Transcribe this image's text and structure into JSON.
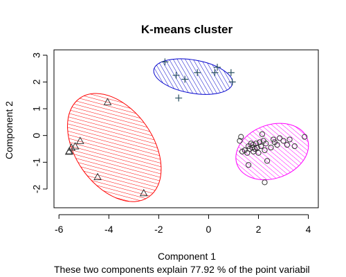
{
  "chart_data": {
    "type": "scatter",
    "title": "K-means cluster",
    "xlabel": "Component 1",
    "ylabel": "Component 2",
    "footnote": "These two components explain 77.92 % of the point variabil",
    "xlim": [
      -6.2,
      4.4
    ],
    "ylim": [
      -2.7,
      3.2
    ],
    "xticks": [
      -6,
      -4,
      -2,
      0,
      2,
      4
    ],
    "yticks": [
      -2,
      -1,
      0,
      1,
      2,
      3
    ],
    "grid": false,
    "colors": {
      "cluster1": "#ff0000",
      "cluster2": "#0000cc",
      "cluster3": "#ff00ff",
      "points": "#333333"
    },
    "clusters": [
      {
        "marker": "triangle",
        "color": "#ff0000",
        "ellipse": {
          "cx": -3.78,
          "cy": -0.45,
          "rx": 1.55,
          "ry": 2.25,
          "angle": 35
        },
        "points": [
          [
            -4.05,
            1.25
          ],
          [
            -5.6,
            -0.6
          ],
          [
            -5.5,
            -0.45
          ],
          [
            -5.35,
            -0.4
          ],
          [
            -5.15,
            -0.2
          ],
          [
            -4.45,
            -1.55
          ],
          [
            -2.6,
            -2.15
          ],
          [
            -5.58,
            -0.58
          ]
        ]
      },
      {
        "marker": "plus",
        "color": "#0000cc",
        "ellipse": {
          "cx": -0.62,
          "cy": 2.2,
          "rx": 1.6,
          "ry": 0.62,
          "angle": -10
        },
        "points": [
          [
            -1.75,
            2.75
          ],
          [
            -1.3,
            2.25
          ],
          [
            -1.2,
            1.4
          ],
          [
            -0.95,
            2.1
          ],
          [
            -0.45,
            2.35
          ],
          [
            0.25,
            2.35
          ],
          [
            0.35,
            2.55
          ],
          [
            0.9,
            2.35
          ],
          [
            0.95,
            2.0
          ]
        ]
      },
      {
        "marker": "circle",
        "color": "#ff00ff",
        "ellipse": {
          "cx": 2.55,
          "cy": -0.6,
          "rx": 1.5,
          "ry": 1.0,
          "angle": 20
        },
        "points": [
          [
            1.25,
            -0.2
          ],
          [
            1.3,
            -0.05
          ],
          [
            1.35,
            -0.6
          ],
          [
            1.45,
            -0.55
          ],
          [
            1.55,
            -0.65
          ],
          [
            1.6,
            -0.4
          ],
          [
            1.65,
            -0.5
          ],
          [
            1.7,
            -0.3
          ],
          [
            1.75,
            -0.45
          ],
          [
            1.78,
            -0.35
          ],
          [
            1.8,
            -0.6
          ],
          [
            1.85,
            -0.5
          ],
          [
            1.9,
            -0.3
          ],
          [
            1.95,
            -0.45
          ],
          [
            2.0,
            -0.65
          ],
          [
            2.05,
            -0.25
          ],
          [
            2.1,
            -0.4
          ],
          [
            2.15,
            0.05
          ],
          [
            2.2,
            -0.2
          ],
          [
            2.25,
            -0.55
          ],
          [
            2.3,
            -0.3
          ],
          [
            2.35,
            -0.95
          ],
          [
            2.5,
            -0.45
          ],
          [
            2.6,
            -0.15
          ],
          [
            2.65,
            -0.25
          ],
          [
            2.75,
            -0.35
          ],
          [
            2.85,
            -0.1
          ],
          [
            3.0,
            -0.2
          ],
          [
            3.15,
            -0.35
          ],
          [
            3.25,
            -0.15
          ],
          [
            3.45,
            -0.4
          ],
          [
            3.85,
            -0.05
          ],
          [
            1.6,
            -1.1
          ],
          [
            2.25,
            -1.75
          ]
        ]
      }
    ]
  }
}
